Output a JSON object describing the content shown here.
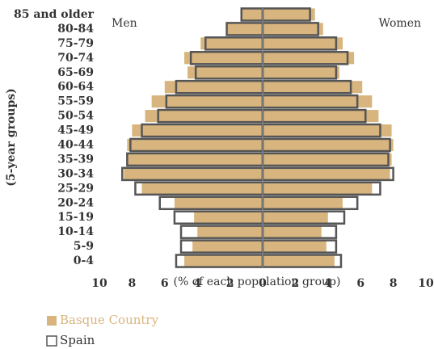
{
  "chart_data": {
    "type": "pyramid",
    "y_axis_label": "(5-year groups)",
    "x_axis_label": "(% of each population group)",
    "sides": [
      "Men",
      "Women"
    ],
    "categories": [
      "0-4",
      "5-9",
      "10-14",
      "15-19",
      "20-24",
      "25-29",
      "30-34",
      "35-39",
      "40-44",
      "45-49",
      "50-54",
      "55-59",
      "60-64",
      "65-69",
      "70-74",
      "75-79",
      "80-84",
      "85 and older"
    ],
    "series": [
      {
        "name": "Basque Country",
        "color": "#d8b57e",
        "style": "filled",
        "men": [
          4.8,
          4.3,
          4.0,
          4.2,
          5.4,
          7.4,
          8.5,
          8.3,
          8.3,
          8.0,
          7.2,
          6.8,
          6.0,
          4.6,
          4.8,
          3.8,
          2.2,
          1.3
        ],
        "women": [
          4.4,
          3.9,
          3.6,
          4.0,
          4.9,
          6.7,
          7.8,
          7.9,
          8.0,
          7.9,
          7.1,
          6.7,
          6.1,
          4.7,
          5.6,
          4.9,
          3.7,
          3.2
        ]
      },
      {
        "name": "Spain",
        "color": "#555555",
        "style": "outline",
        "men": [
          5.3,
          5.0,
          5.0,
          5.4,
          6.3,
          7.8,
          8.6,
          8.3,
          8.1,
          7.4,
          6.4,
          5.9,
          5.3,
          4.1,
          4.4,
          3.5,
          2.2,
          1.3
        ],
        "women": [
          4.8,
          4.5,
          4.5,
          5.0,
          5.8,
          7.2,
          8.0,
          7.7,
          7.8,
          7.2,
          6.3,
          5.8,
          5.4,
          4.5,
          5.2,
          4.5,
          3.4,
          2.9
        ]
      }
    ],
    "xlim": [
      -10,
      10
    ],
    "xticks": [
      {
        "value": -10,
        "label": "10"
      },
      {
        "value": -8,
        "label": "8"
      },
      {
        "value": -6,
        "label": "6"
      },
      {
        "value": -4,
        "label": "4"
      },
      {
        "value": -2,
        "label": "2"
      },
      0,
      2,
      4,
      6,
      8,
      10
    ]
  }
}
